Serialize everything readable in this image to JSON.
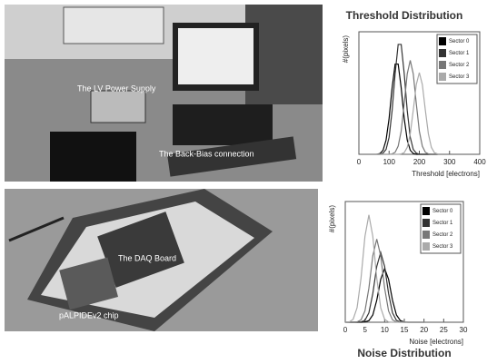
{
  "photo_labels": [
    "The LV Power Supply",
    "The Back-Bias connection",
    "The DAQ Board",
    "pALPIDEv2 chip"
  ],
  "chart_data": [
    {
      "type": "line",
      "title": "Threshold Distribution",
      "xlabel": "Threshold [electrons]",
      "ylabel": "#(pixels)",
      "x": [
        60,
        70,
        80,
        90,
        100,
        110,
        120,
        130,
        140,
        150,
        160,
        170,
        180,
        190,
        200,
        210,
        220,
        230,
        240,
        250,
        260
      ],
      "xlim": [
        0,
        400
      ],
      "xticks": [
        0,
        100,
        200,
        300,
        400
      ],
      "ylim": [
        0,
        300
      ],
      "legend": "upper right",
      "series": [
        {
          "name": "Sector 0",
          "color": "#000000",
          "values": [
            0,
            2,
            10,
            35,
            88,
            163,
            221,
            221,
            163,
            88,
            35,
            10,
            2,
            0,
            0,
            0,
            0,
            0,
            0,
            0,
            0
          ]
        },
        {
          "name": "Sector 1",
          "color": "#333333",
          "values": [
            0,
            0,
            3,
            12,
            42,
            107,
            198,
            269,
            269,
            198,
            107,
            42,
            12,
            3,
            0,
            0,
            0,
            0,
            0,
            0,
            0
          ]
        },
        {
          "name": "Sector 2",
          "color": "#777777",
          "values": [
            0,
            0,
            0,
            0,
            0,
            1,
            5,
            20,
            57,
            124,
            197,
            230,
            197,
            124,
            57,
            20,
            5,
            1,
            0,
            0,
            0
          ]
        },
        {
          "name": "Sector 3",
          "color": "#aaaaaa",
          "values": [
            0,
            0,
            0,
            0,
            0,
            0,
            0,
            0,
            1,
            4,
            17,
            50,
            108,
            171,
            200,
            171,
            108,
            50,
            17,
            4,
            1
          ]
        }
      ]
    },
    {
      "type": "line",
      "title": "Noise Distribution",
      "xlabel": "Noise [electrons]",
      "ylabel": "#(pixels)",
      "x": [
        0,
        1,
        2,
        3,
        4,
        5,
        6,
        7,
        8,
        9,
        10,
        11,
        12,
        13,
        14,
        15,
        16,
        17,
        18,
        19,
        20
      ],
      "xlim": [
        0,
        30
      ],
      "xticks": [
        0,
        5,
        10,
        15,
        20,
        25,
        30
      ],
      "ylim": [
        0,
        450
      ],
      "legend": "upper right",
      "series": [
        {
          "name": "Sector 0",
          "color": "#000000",
          "values": [
            0,
            0,
            0,
            0,
            0,
            1,
            6,
            27,
            82,
            160,
            200,
            160,
            82,
            27,
            6,
            1,
            0,
            0,
            0,
            0,
            0
          ]
        },
        {
          "name": "Sector 1",
          "color": "#333333",
          "values": [
            0,
            0,
            0,
            0,
            1,
            7,
            35,
            107,
            208,
            260,
            208,
            107,
            35,
            7,
            1,
            0,
            0,
            0,
            0,
            0,
            0
          ]
        },
        {
          "name": "Sector 2",
          "color": "#777777",
          "values": [
            0,
            0,
            0,
            1,
            9,
            42,
            127,
            248,
            310,
            248,
            127,
            42,
            9,
            1,
            0,
            0,
            0,
            0,
            0,
            0,
            0
          ]
        },
        {
          "name": "Sector 3",
          "color": "#aaaaaa",
          "values": [
            0,
            1,
            11,
            54,
            164,
            320,
            400,
            320,
            164,
            54,
            11,
            1,
            0,
            0,
            0,
            0,
            0,
            0,
            0,
            0,
            0
          ]
        }
      ]
    }
  ]
}
